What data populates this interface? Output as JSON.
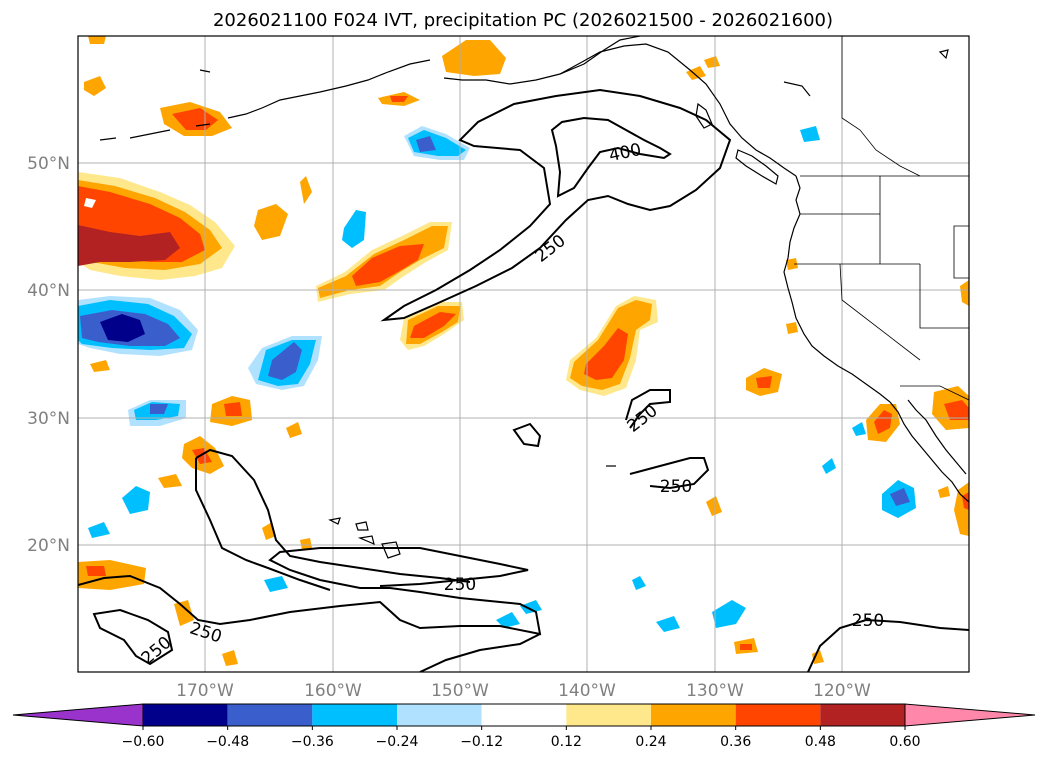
{
  "title": "2026021100 F024 IVT, precipitation PC (2026021500 - 2026021600)",
  "lat_labels": [
    "50°N",
    "40°N",
    "30°N",
    "20°N"
  ],
  "lon_labels": [
    "170°W",
    "160°W",
    "150°W",
    "140°W",
    "130°W",
    "120°W"
  ],
  "colorbar": {
    "ticks": [
      "−0.60",
      "−0.48",
      "−0.36",
      "−0.24",
      "−0.12",
      "0.12",
      "0.24",
      "0.36",
      "0.48",
      "0.60"
    ],
    "levels": [
      -0.6,
      -0.48,
      -0.36,
      -0.24,
      -0.12,
      0.12,
      0.24,
      0.36,
      0.48,
      0.6
    ],
    "colors": [
      "#9933cc",
      "#00008b",
      "#3a5fcd",
      "#00bfff",
      "#b0e2ff",
      "#ffffff",
      "#ffe88c",
      "#ffa500",
      "#ff4500",
      "#b22222",
      "#ff88aa"
    ],
    "extend": "both"
  },
  "ivt_labels": [
    "400",
    "250",
    "250",
    "250",
    "250",
    "250",
    "250",
    "250"
  ],
  "map": {
    "projection": "cylindrical",
    "lon_range": [
      -180,
      -110
    ],
    "lat_range": [
      10,
      60
    ],
    "gridlines": true,
    "features": [
      "coastlines",
      "country borders",
      "US state borders"
    ]
  }
}
